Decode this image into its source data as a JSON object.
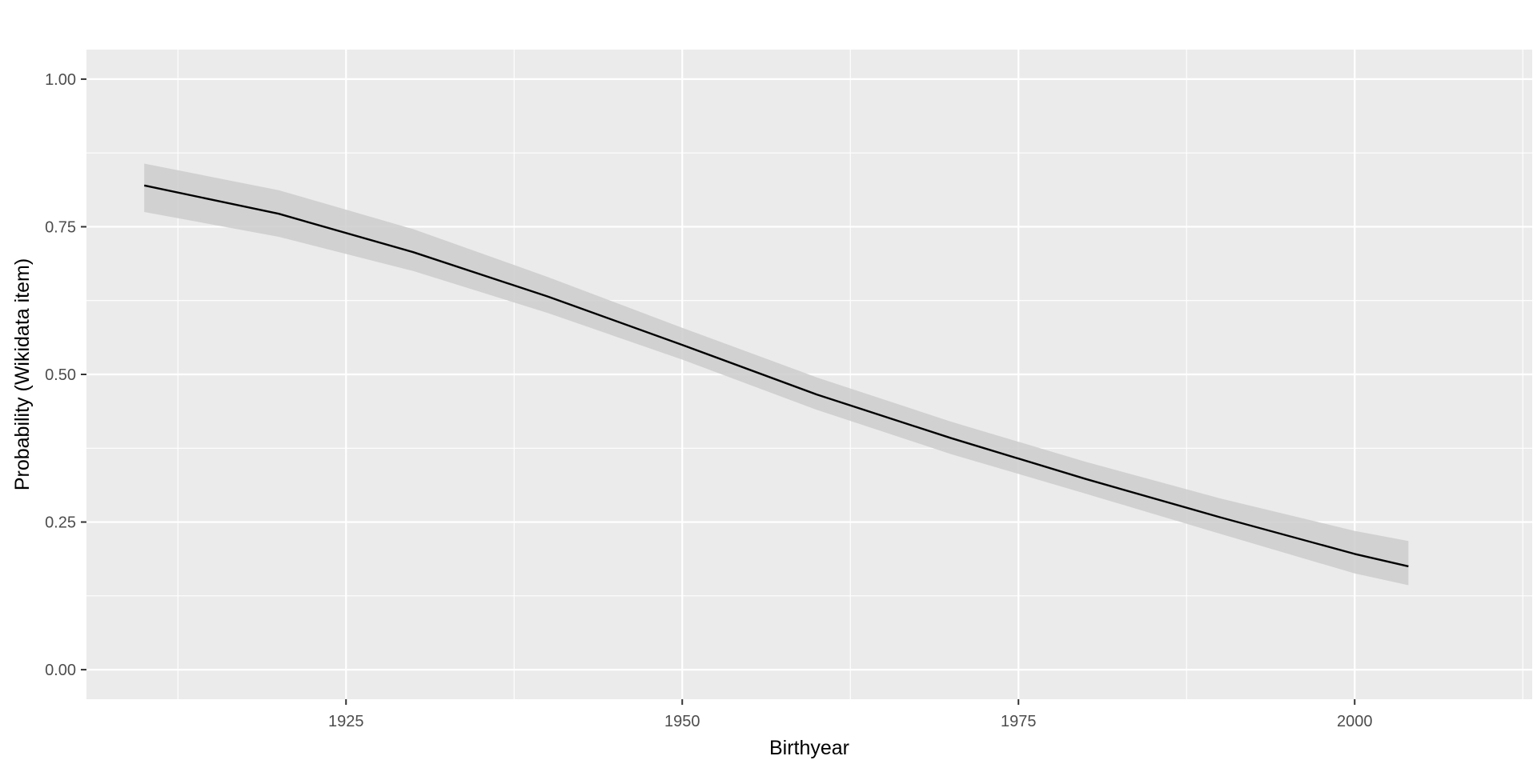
{
  "chart_data": {
    "type": "line",
    "title": "",
    "xlabel": "Birthyear",
    "ylabel": "Probability (Wikidata item)",
    "xlim": [
      1905.7,
      2013.2
    ],
    "ylim": [
      -0.05,
      1.05
    ],
    "x_ticks": [
      1925,
      1950,
      1975,
      2000
    ],
    "x_tick_labels": [
      "1925",
      "1950",
      "1975",
      "2000"
    ],
    "x_minor_ticks": [
      1912.5,
      1937.5,
      1962.5,
      1987.5,
      2012.5
    ],
    "y_ticks": [
      0,
      0.25,
      0.5,
      0.75,
      1
    ],
    "y_tick_labels": [
      "0.00",
      "0.25",
      "0.50",
      "0.75",
      "1.00"
    ],
    "y_minor_ticks": [
      0.125,
      0.375,
      0.625,
      0.875
    ],
    "grid": true,
    "legend": "none",
    "colors": {
      "panel": "#ebebeb",
      "grid": "#ffffff",
      "line": "#000000",
      "ribbon": "#cccccc",
      "tick": "#333333"
    },
    "series": [
      {
        "x": [
          1910,
          1920,
          1930,
          1940,
          1950,
          1960,
          1970,
          1980,
          1990,
          2000,
          2004
        ],
        "y": [
          0.82,
          0.772,
          0.707,
          0.632,
          0.55,
          0.466,
          0.392,
          0.323,
          0.258,
          0.196,
          0.175
        ],
        "lower": [
          0.775,
          0.733,
          0.675,
          0.604,
          0.525,
          0.44,
          0.365,
          0.298,
          0.23,
          0.163,
          0.143
        ],
        "upper": [
          0.857,
          0.812,
          0.746,
          0.665,
          0.579,
          0.495,
          0.42,
          0.352,
          0.29,
          0.235,
          0.218
        ]
      }
    ]
  }
}
